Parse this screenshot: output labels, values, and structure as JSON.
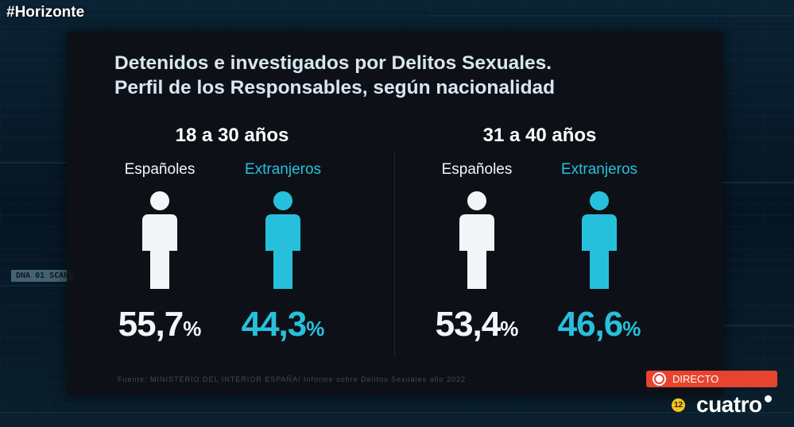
{
  "hashtag": "#Horizonte",
  "overlay_tag": "DNA 01 SCAN",
  "title_line1": "Detenidos e investigados por Delitos Sexuales.",
  "title_line2": "Perfil de los Responsables, según nacionalidad",
  "groups": [
    {
      "title": "18 a 30 años",
      "spanish": {
        "label": "Españoles",
        "value": "55,7",
        "fraction": 0.557,
        "unit": "%"
      },
      "foreign": {
        "label": "Extranjeros",
        "value": "44,3",
        "fraction": 0.443,
        "unit": "%"
      }
    },
    {
      "title": "31 a 40 años",
      "spanish": {
        "label": "Españoles",
        "value": "53,4",
        "fraction": 0.534,
        "unit": "%"
      },
      "foreign": {
        "label": "Extranjeros",
        "value": "46,6",
        "fraction": 0.466,
        "unit": "%"
      }
    }
  ],
  "source": "Fuente: MINISTERIO DEL INTERIOR ESPAÑA/ Informe sobre Delitos Sexuales año 2022",
  "live_label": "DIRECTO",
  "age_rating": "12",
  "channel": "cuatro",
  "colors": {
    "spanish": "#f2f6f9",
    "foreign": "#27c0dc",
    "live": "#e8432e",
    "rating": "#f5c518"
  },
  "icons": {
    "person": "person-icon"
  }
}
